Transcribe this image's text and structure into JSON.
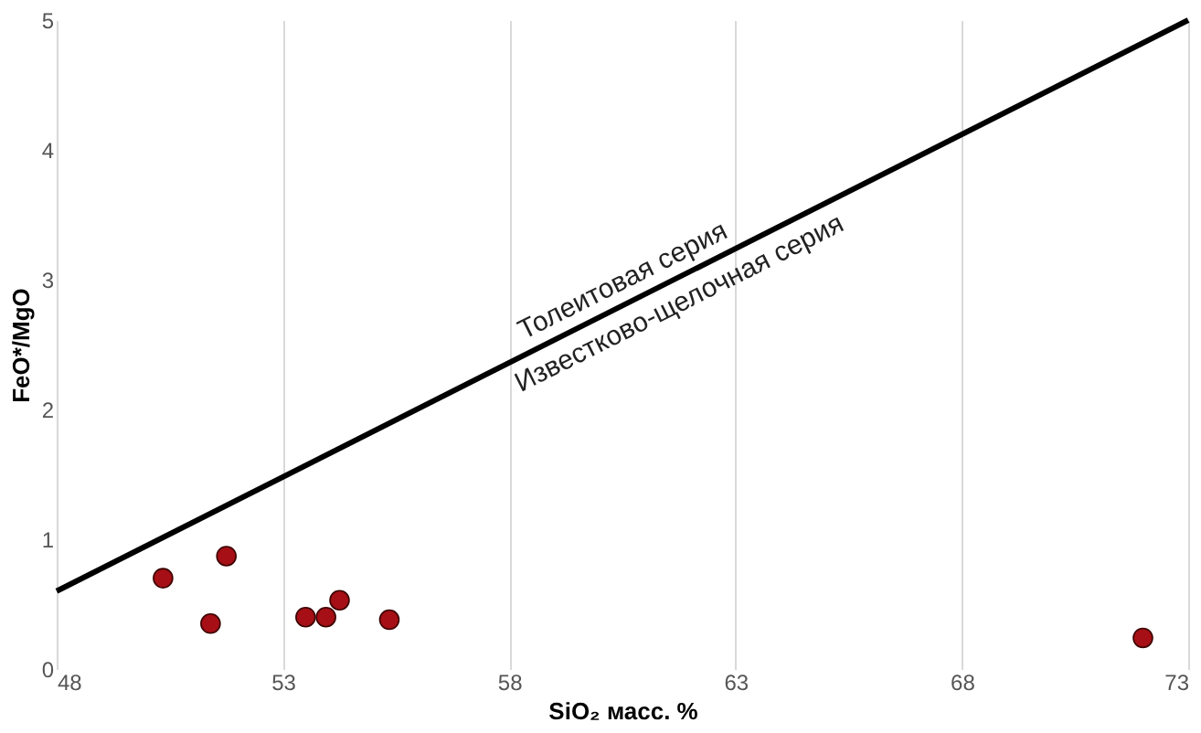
{
  "chart_data": {
    "type": "scatter",
    "xlabel": "SiO₂ масс. %",
    "ylabel": "FeO*/MgO",
    "xlim": [
      48,
      73
    ],
    "xticks": [
      48,
      53,
      58,
      63,
      68,
      73
    ],
    "ylim": [
      0,
      5
    ],
    "yticks": [
      0,
      1,
      2,
      3,
      4,
      5
    ],
    "grid": "x",
    "marker": "circle",
    "series": [
      {
        "color": "#a50f15",
        "x": [
          50.35,
          51.75,
          51.4,
          53.5,
          53.95,
          54.25,
          55.35,
          72.0
        ],
        "values": [
          0.7,
          0.87,
          0.35,
          0.4,
          0.4,
          0.53,
          0.38,
          0.24
        ]
      },
      {
        "type": "line",
        "color": "#000000",
        "marker": "none",
        "line_style": "solid",
        "x": [
          48,
          73
        ],
        "values": [
          0.6,
          5
        ]
      }
    ],
    "annotations": [
      "Толеитовая серия",
      "Известково-щелочная серия"
    ]
  }
}
